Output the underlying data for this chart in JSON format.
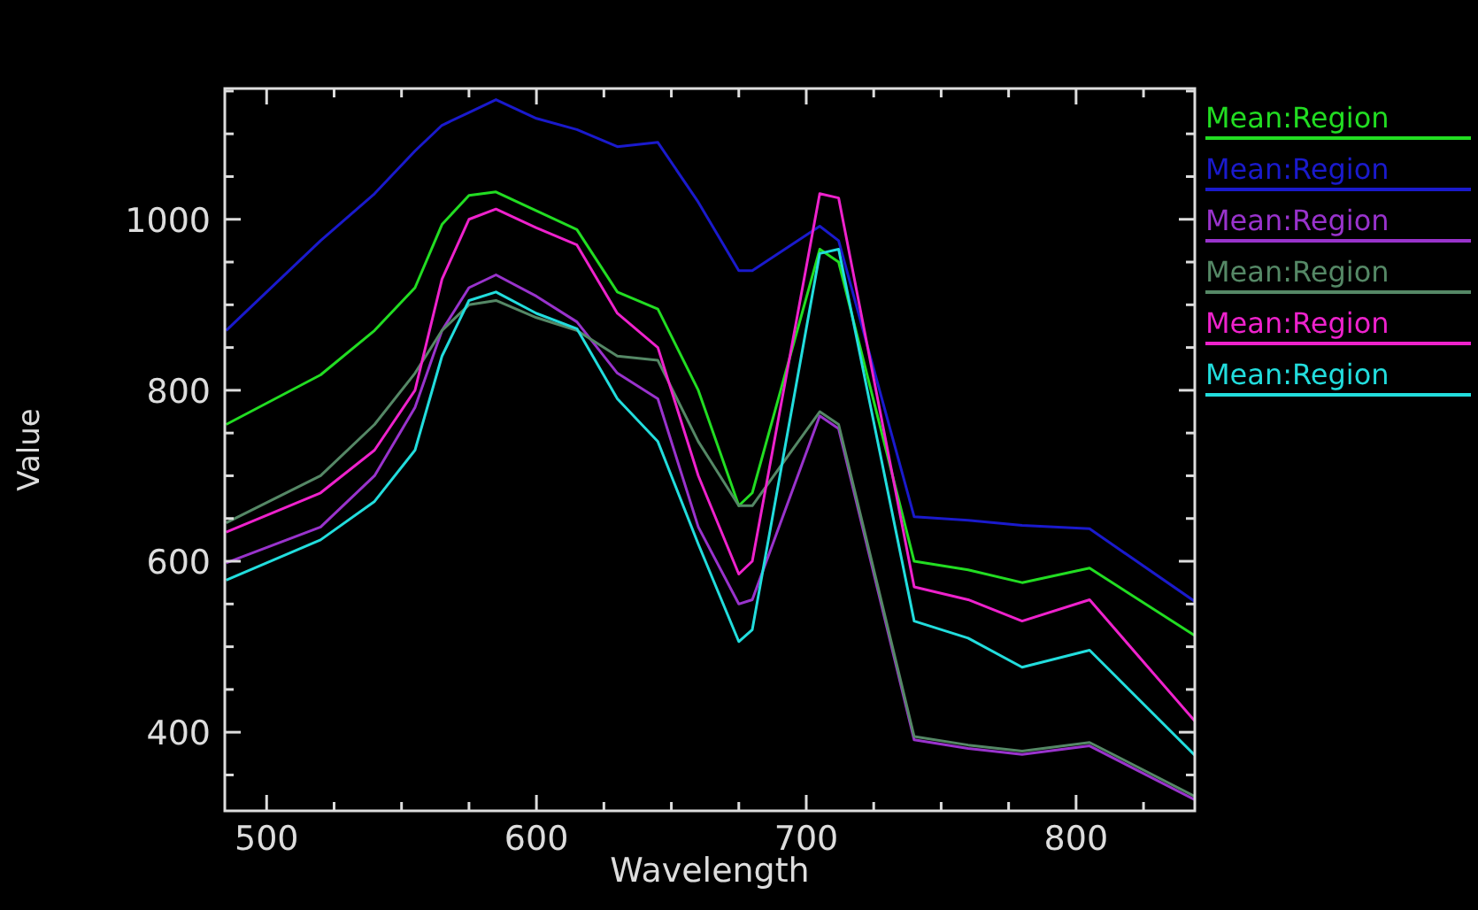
{
  "chart_data": {
    "type": "line",
    "xlabel": "Wavelength",
    "ylabel": "Value",
    "legend": "right",
    "grid": false,
    "marker": "none",
    "line_style": "solid",
    "x": [
      485,
      520,
      540,
      555,
      565,
      575,
      585,
      600,
      615,
      630,
      645,
      660,
      675,
      680,
      705,
      712,
      740,
      760,
      780,
      805,
      844
    ],
    "xlim": [
      484.5,
      844
    ],
    "ylim": [
      308,
      1153
    ],
    "xticks": [
      500,
      {
        "value": 525,
        "label": null
      },
      {
        "value": 550,
        "label": null
      },
      {
        "value": 575,
        "label": null
      },
      600,
      {
        "value": 625,
        "label": null
      },
      {
        "value": 650,
        "label": null
      },
      {
        "value": 675,
        "label": null
      },
      700,
      {
        "value": 725,
        "label": null
      },
      {
        "value": 750,
        "label": null
      },
      {
        "value": 775,
        "label": null
      },
      800,
      {
        "value": 825,
        "label": null
      }
    ],
    "yticks": [
      {
        "value": 350,
        "label": null
      },
      400,
      {
        "value": 450,
        "label": null
      },
      {
        "value": 500,
        "label": null
      },
      {
        "value": 550,
        "label": null
      },
      600,
      {
        "value": 650,
        "label": null
      },
      {
        "value": 700,
        "label": null
      },
      {
        "value": 750,
        "label": null
      },
      800,
      {
        "value": 850,
        "label": null
      },
      {
        "value": 900,
        "label": null
      },
      {
        "value": 950,
        "label": null
      },
      1000,
      {
        "value": 1050,
        "label": null
      },
      {
        "value": 1100,
        "label": null
      },
      {
        "value": 1150,
        "label": null
      }
    ],
    "series": [
      {
        "name": "Mean:Region",
        "color": "#22dd22",
        "values": [
          760,
          818,
          870,
          920,
          994,
          1028,
          1032,
          1010,
          988,
          915,
          895,
          800,
          665,
          680,
          965,
          950,
          600,
          590,
          575,
          592,
          513
        ]
      },
      {
        "name": "Mean:Region",
        "color": "#1a1acc",
        "values": [
          870,
          975,
          1030,
          1080,
          1110,
          1125,
          1140,
          1118,
          1105,
          1085,
          1090,
          1020,
          940,
          940,
          992,
          975,
          652,
          648,
          642,
          638,
          553
        ]
      },
      {
        "name": "Mean:Region",
        "color": "#9933cc",
        "values": [
          598,
          640,
          700,
          780,
          870,
          920,
          935,
          910,
          880,
          820,
          790,
          640,
          550,
          555,
          770,
          755,
          391,
          381,
          374,
          384,
          321
        ]
      },
      {
        "name": "Mean:Region",
        "color": "#558866",
        "values": [
          645,
          700,
          760,
          820,
          870,
          900,
          905,
          885,
          870,
          840,
          835,
          740,
          665,
          665,
          775,
          760,
          395,
          385,
          378,
          388,
          325
        ]
      },
      {
        "name": "Mean:Region",
        "color": "#ee22cc",
        "values": [
          634,
          680,
          730,
          800,
          930,
          1000,
          1012,
          990,
          970,
          890,
          850,
          700,
          585,
          600,
          1030,
          1025,
          570,
          555,
          530,
          555,
          413
        ]
      },
      {
        "name": "Mean:Region",
        "color": "#22dddd",
        "values": [
          578,
          625,
          670,
          730,
          840,
          905,
          915,
          890,
          872,
          790,
          740,
          620,
          506,
          520,
          960,
          965,
          530,
          510,
          476,
          496,
          373
        ]
      }
    ]
  }
}
